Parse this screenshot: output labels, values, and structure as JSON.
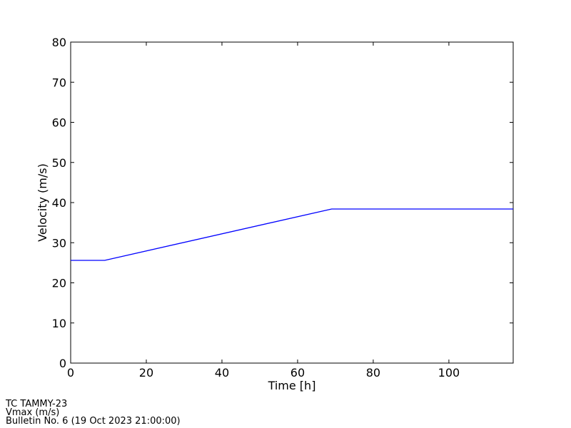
{
  "chart_data": {
    "type": "line",
    "xlabel": "Time [h]",
    "ylabel": "Velocity (m/s)",
    "x": [
      0,
      9,
      69,
      117
    ],
    "series": [
      {
        "name": "Vmax",
        "color": "#0000ff",
        "values": [
          25.6,
          25.6,
          38.4,
          38.4
        ]
      }
    ],
    "xlim": [
      0,
      117
    ],
    "xticks": [
      0,
      20,
      40,
      60,
      80,
      100
    ],
    "ylim": [
      0,
      80
    ],
    "yticks": [
      0,
      10,
      20,
      30,
      40,
      50,
      60,
      70,
      80
    ],
    "grid": false,
    "annotations": [
      "TC TAMMY-23",
      "Vmax (m/s)",
      "Bulletin No. 6 (19 Oct 2023  21:00:00)"
    ]
  }
}
